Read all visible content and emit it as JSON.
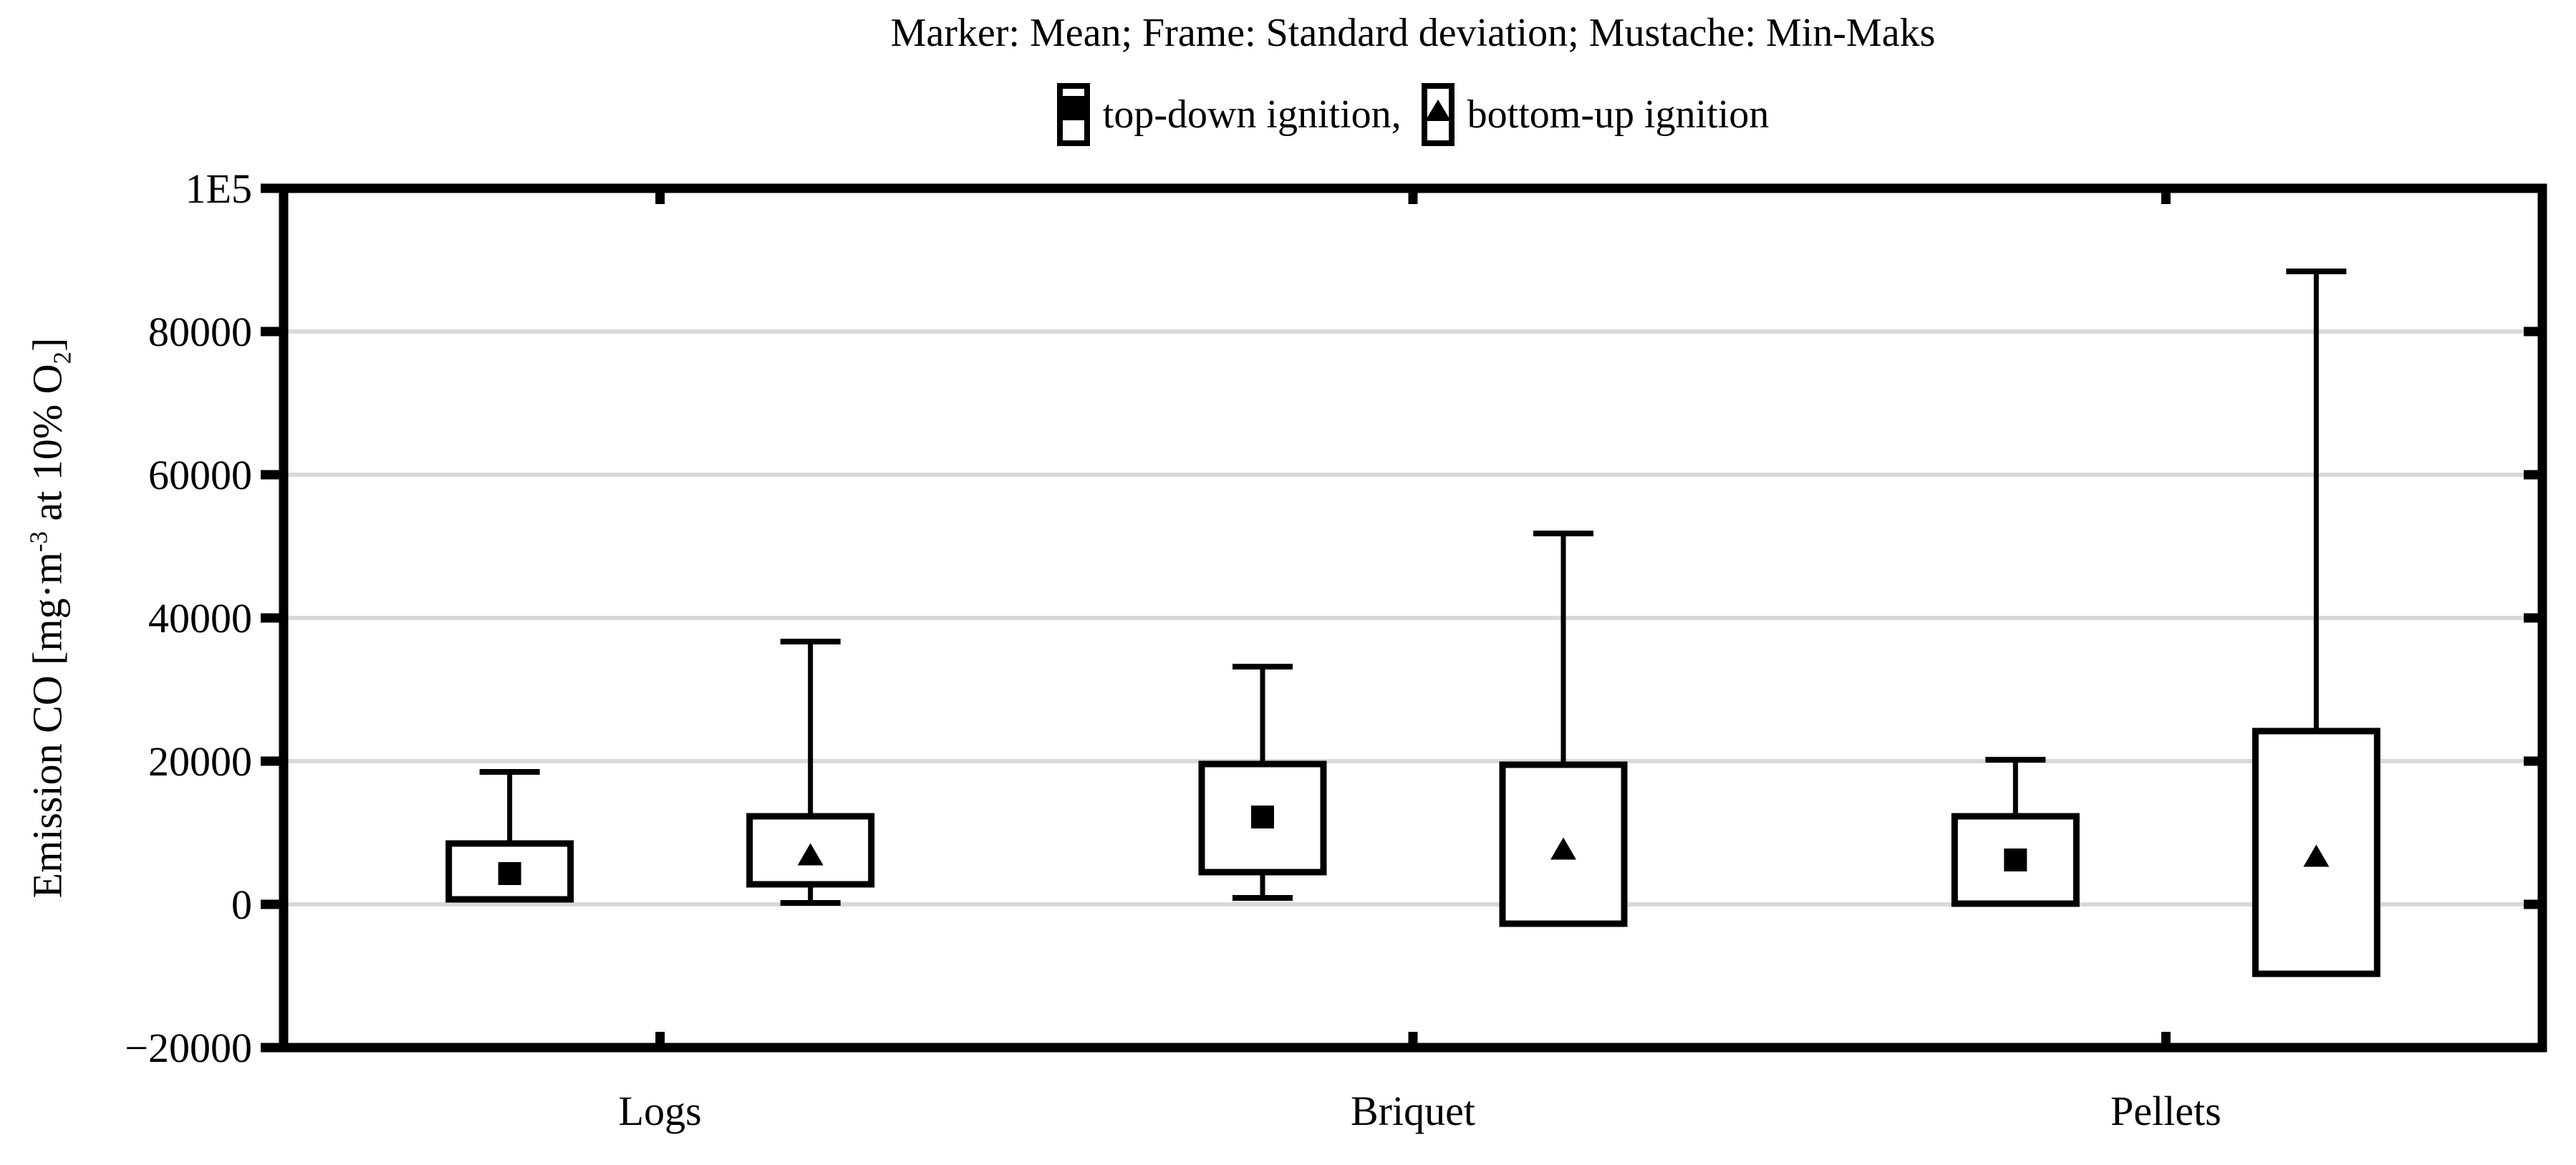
{
  "header": {
    "title": "Marker: Mean; Frame: Standard deviation; Mustache: Min-Maks",
    "legend": [
      {
        "marker": "square-icon",
        "label": "top-down ignition,"
      },
      {
        "marker": "triangle-icon",
        "label": "bottom-up ignition"
      }
    ]
  },
  "y_axis": {
    "label_prefix": "Emission CO [mg·m",
    "label_sup": "-3",
    "label_mid": " at 10% O",
    "label_sub": "2",
    "label_suffix": "]"
  },
  "chart_data": {
    "type": "boxplot",
    "title": "Marker: Mean; Frame: Standard deviation; Mustache: Min-Maks",
    "subtitle_legend": "top-down ignition (square marker), bottom-up ignition (triangle marker)",
    "categories": [
      "Logs",
      "Briquet",
      "Pellets"
    ],
    "xlabel": "",
    "ylabel": "Emission CO [mg·m⁻³ at 10% O₂]",
    "ylim": [
      -20000,
      100000
    ],
    "grid": "horizontal",
    "legend_position": "top-center",
    "box_semantics": {
      "marker": "Mean",
      "frame": "Standard deviation",
      "whisker": "Min-Maks"
    },
    "yticks": [
      {
        "label": "1E5",
        "value": 100000
      },
      {
        "label": "80000",
        "value": 80000
      },
      {
        "label": "60000",
        "value": 60000
      },
      {
        "label": "40000",
        "value": 40000
      },
      {
        "label": "20000",
        "value": 20000
      },
      {
        "label": "0",
        "value": 0
      },
      {
        "label": "−20000",
        "value": -20000
      }
    ],
    "series": [
      {
        "name": "top-down ignition",
        "marker": "square",
        "stats": [
          {
            "category": "Logs",
            "mean": 4300,
            "sd_low": 700,
            "sd_high": 8500,
            "min": null,
            "max": 18500
          },
          {
            "category": "Briquet",
            "mean": 12200,
            "sd_low": 4500,
            "sd_high": 19600,
            "min": 900,
            "max": 33200
          },
          {
            "category": "Pellets",
            "mean": 6200,
            "sd_low": 100,
            "sd_high": 12300,
            "min": null,
            "max": 20200
          }
        ]
      },
      {
        "name": "bottom-up ignition",
        "marker": "triangle",
        "stats": [
          {
            "category": "Logs",
            "mean": 7000,
            "sd_low": 2800,
            "sd_high": 12300,
            "min": 200,
            "max": 36700
          },
          {
            "category": "Briquet",
            "mean": 7800,
            "sd_low": -2700,
            "sd_high": 19500,
            "min": null,
            "max": 51800
          },
          {
            "category": "Pellets",
            "mean": 6800,
            "sd_low": -9700,
            "sd_high": 24200,
            "min": null,
            "max": 88400
          }
        ]
      }
    ],
    "colors": {
      "stroke": "#000000",
      "grid": "#d9d9d9",
      "background": "#ffffff",
      "box_fill": "#ffffff"
    }
  }
}
